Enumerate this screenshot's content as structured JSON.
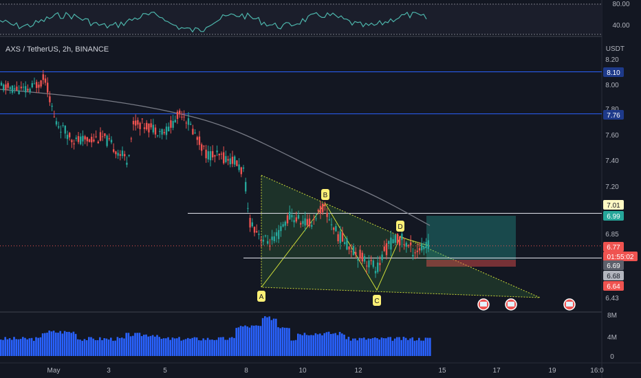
{
  "header": {
    "symbol": "AXS / TetherUS, 2h, BINANCE",
    "currency": "USDT"
  },
  "rsi": {
    "ticks": [
      "80.00",
      "40.00"
    ],
    "line_color": "#4db6ac"
  },
  "price_axis": {
    "ticks": [
      "8.20",
      "8.00",
      "7.80",
      "7.60",
      "7.40",
      "7.20",
      "6.85",
      "6.43"
    ],
    "tags": [
      {
        "text": "8.10",
        "bg": "#1e3a8a",
        "fg": "#ffffff"
      },
      {
        "text": "7.76",
        "bg": "#1e3a8a",
        "fg": "#ffffff"
      },
      {
        "text": "7.01",
        "bg": "#fff9c4",
        "fg": "#131722"
      },
      {
        "text": "6.99",
        "bg": "#26a69a",
        "fg": "#ffffff"
      },
      {
        "text": "6.77",
        "bg": "#ef5350",
        "fg": "#ffffff"
      },
      {
        "text": "01:55:02",
        "bg": "#ef5350",
        "fg": "#ffffff"
      },
      {
        "text": "6.69",
        "bg": "#5d606b",
        "fg": "#ffffff"
      },
      {
        "text": "6.68",
        "bg": "#b2b5be",
        "fg": "#131722"
      },
      {
        "text": "6.64",
        "bg": "#ef5350",
        "fg": "#ffffff"
      }
    ]
  },
  "volume_axis": {
    "ticks": [
      "8M",
      "4M",
      "0"
    ]
  },
  "time_axis": {
    "labels": [
      "May",
      "3",
      "5",
      "8",
      "10",
      "12",
      "15",
      "17",
      "19",
      "16:0"
    ]
  },
  "pattern": {
    "points": [
      "A",
      "B",
      "C",
      "D"
    ]
  },
  "chart_data": {
    "type": "candlestick",
    "title": "AXS / TetherUS, 2h, BINANCE",
    "ylabel": "USDT",
    "y_ticks": [
      8.2,
      8.0,
      7.8,
      7.6,
      7.4,
      7.2,
      6.85,
      6.43
    ],
    "ylim": [
      6.4,
      8.28
    ],
    "x_tick_labels": [
      "May",
      "3",
      "5",
      "8",
      "10",
      "12",
      "15",
      "17",
      "19",
      "16:0"
    ],
    "horizontal_levels": [
      8.1,
      7.76
    ],
    "last_price": 6.77,
    "countdown": "01:55:02",
    "price_labels": [
      7.01,
      6.99,
      6.69,
      6.68,
      6.64
    ],
    "harmonic_pattern": {
      "labels": [
        "A",
        "B",
        "C",
        "D"
      ]
    },
    "rsi_range": [
      40,
      80
    ],
    "volume_max_label": "8M",
    "colors": {
      "up": "#26a69a",
      "down": "#ef5350",
      "volume": "#2962ff",
      "level": "#2962ff",
      "ma": "#787b86"
    }
  }
}
